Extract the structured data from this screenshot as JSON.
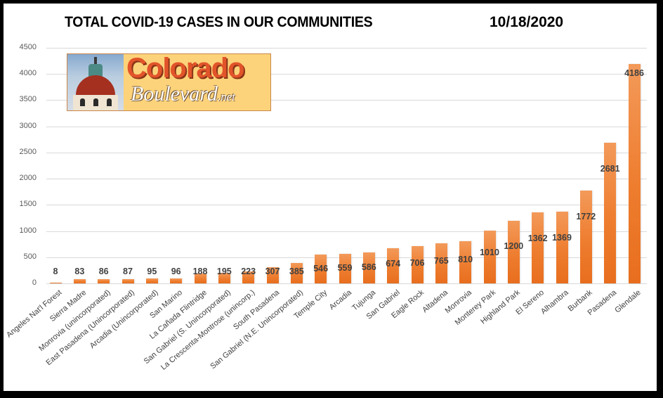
{
  "header": {
    "title": "TOTAL COVID-19 CASES IN OUR COMMUNITIES",
    "date": "10/18/2020"
  },
  "logo": {
    "main_text": "Colorado",
    "sub_text": "Boulevard",
    "suffix": ".net"
  },
  "colors": {
    "bar": "#ED7D31",
    "gridline": "#D9D9D9",
    "frame": "#000000"
  },
  "chart_data": {
    "type": "bar",
    "title": "TOTAL COVID-19 CASES IN OUR COMMUNITIES",
    "subtitle": "10/18/2020",
    "xlabel": "",
    "ylabel": "",
    "ylim": [
      0,
      4500
    ],
    "yticks": [
      0,
      500,
      1000,
      1500,
      2000,
      2500,
      3000,
      3500,
      4000,
      4500
    ],
    "grid": true,
    "legend": "none",
    "data_labels": true,
    "categories": [
      "Angeles Nat'l Forest",
      "Sierra Madre",
      "Monrovia (unincorporated)",
      "East Pasadena (Unincorporated)",
      "Arcadia (Unincorporated)",
      "San Marino",
      "La Cañada Flintridge",
      "San Gabriel (S. Unincorporated)",
      "La Crescenta-Montrose (unincorp.)",
      "South Pasadena",
      "San Gabriel (N.E. Unincorporated)",
      "Temple City",
      "Arcadia",
      "Tujunga",
      "San Gabriel",
      "Eagle Rock",
      "Altadena",
      "Monrovia",
      "Monterey Park",
      "Highland Park",
      "El Sereno",
      "Alhambra",
      "Burbank",
      "Pasadena",
      "Glendale"
    ],
    "values": [
      8,
      83,
      86,
      87,
      95,
      96,
      188,
      195,
      223,
      307,
      385,
      546,
      559,
      586,
      674,
      706,
      765,
      810,
      1010,
      1200,
      1362,
      1369,
      1772,
      2681,
      4186
    ]
  }
}
